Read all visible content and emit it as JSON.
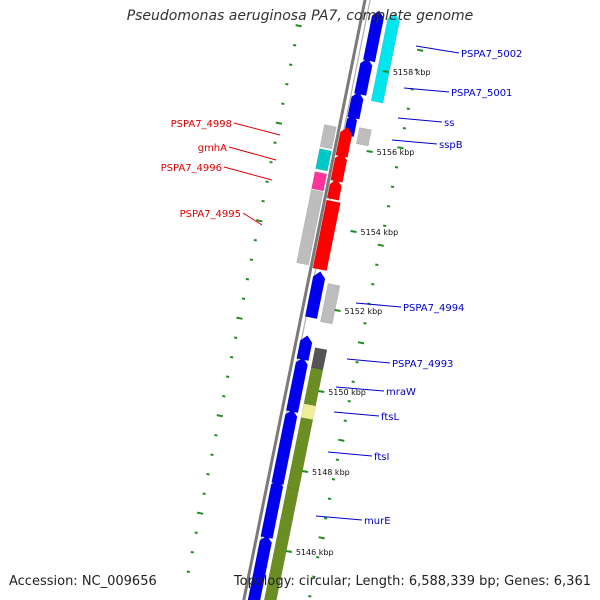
{
  "title": "Pseudomonas aeruginosa PA7, complete genome",
  "footer": {
    "accession": "Accession: NC_009656",
    "topology": "Topology: circular; Length: 6,588,339 bp; Genes: 6,361"
  },
  "colors": {
    "backbone": "#888888",
    "blue": "#0000ee",
    "cyan": "#00e5ee",
    "gray": "#bdbdbd",
    "teal": "#00c8c8",
    "magenta": "#ff3399",
    "red": "#ff0000",
    "olive": "#6b8e23",
    "pale_yellow": "#eeee99",
    "dark_gray": "#555555",
    "green_ticks": "#228b22",
    "label_blue": "#0000cc",
    "label_red": "#dd0000"
  },
  "ticks": [
    "5158 kbp",
    "5156 kbp",
    "5154 kbp",
    "5152 kbp",
    "5150 kbp",
    "5148 kbp",
    "5146 kbp"
  ],
  "labels_right": [
    "PSPA7_5002",
    "PSPA7_5001",
    "ss",
    "sspB",
    "PSPA7_4994",
    "PSPA7_4993",
    "mraW",
    "ftsL",
    "ftsI",
    "murE"
  ],
  "labels_left": [
    "PSPA7_4998",
    "gmhA",
    "PSPA7_4996",
    "PSPA7_4995"
  ]
}
